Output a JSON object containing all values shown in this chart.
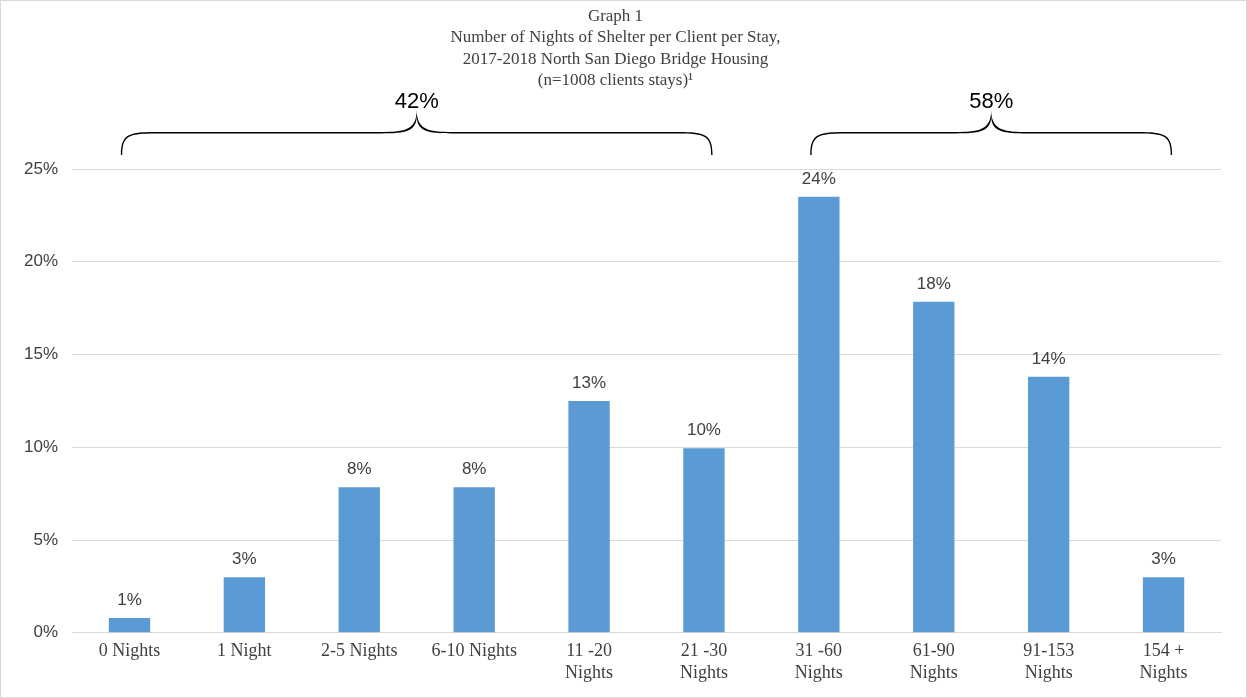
{
  "chart_data": {
    "type": "bar",
    "title": "Graph 1\nNumber of Nights of Shelter per Client per Stay,\n2017-2018 North San Diego Bridge Housing\n(n=1008 clients stays)¹",
    "categories": [
      "0 Nights",
      "1 Night",
      "2-5 Nights",
      "6-10 Nights",
      "11 -20 Nights",
      "21 -30 Nights",
      "31 -60 Nights",
      "61-90 Nights",
      "91-153 Nights",
      "154 + Nights"
    ],
    "values": [
      0.8,
      3.0,
      7.85,
      7.85,
      12.5,
      9.95,
      23.5,
      17.85,
      13.8,
      3.0
    ],
    "value_labels": [
      "1%",
      "3%",
      "8%",
      "8%",
      "13%",
      "10%",
      "24%",
      "18%",
      "14%",
      "3%"
    ],
    "color": "#5b9bd5",
    "ylim": [
      0,
      25
    ],
    "yticks": [
      {
        "value": 0,
        "label": "0%"
      },
      {
        "value": 5,
        "label": "5%"
      },
      {
        "value": 10,
        "label": "10%"
      },
      {
        "value": 15,
        "label": "15%"
      },
      {
        "value": 20,
        "label": "20%"
      },
      {
        "value": 25,
        "label": "25%"
      }
    ],
    "grid": "y",
    "legend": false,
    "annotations": [
      "42%",
      "58%"
    ]
  }
}
